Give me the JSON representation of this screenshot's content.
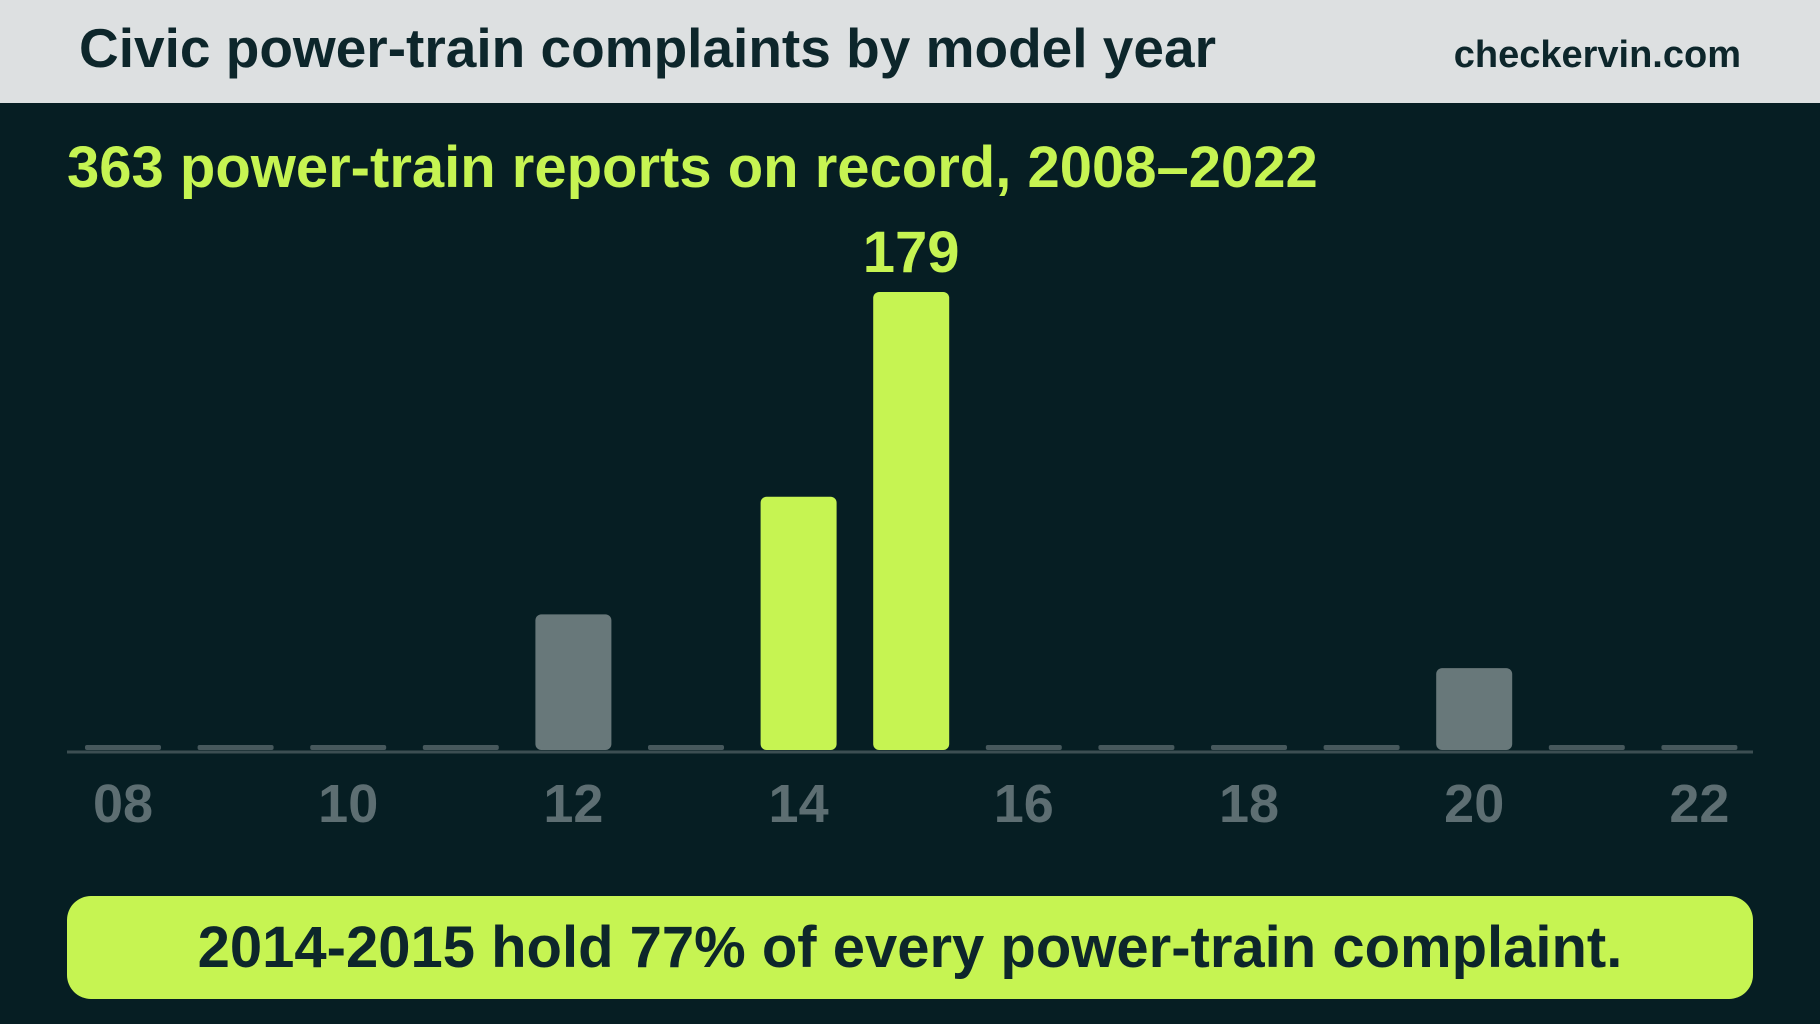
{
  "header": {
    "title": "Civic power-train complaints by model year",
    "site": "checkervin.com"
  },
  "subtitle": "363 power-train reports on record, 2008–2022",
  "callout": "2014-2015 hold 77% of every power-train complaint.",
  "colors": {
    "background": "#061e23",
    "header_bg": "#dde0e1",
    "highlight": "#c6f452",
    "muted_bar": "#68787a",
    "zero_bar": "#46585c",
    "axis_labels": "#5d6e72",
    "text_dark": "#0d262b"
  },
  "chart_data": {
    "type": "bar",
    "categories": [
      "08",
      "09",
      "10",
      "11",
      "12",
      "13",
      "14",
      "15",
      "16",
      "17",
      "18",
      "19",
      "20",
      "21",
      "22"
    ],
    "tick_labels": [
      "08",
      "10",
      "12",
      "14",
      "16",
      "18",
      "20",
      "22"
    ],
    "values": [
      0,
      0,
      0,
      0,
      53,
      0,
      99,
      179,
      0,
      0,
      0,
      0,
      32,
      0,
      0
    ],
    "highlighted": [
      "14",
      "15"
    ],
    "data_labels": [
      {
        "category": "15",
        "text": "179"
      }
    ],
    "ylim": [
      0,
      179
    ],
    "grid": false,
    "legend": "none"
  }
}
